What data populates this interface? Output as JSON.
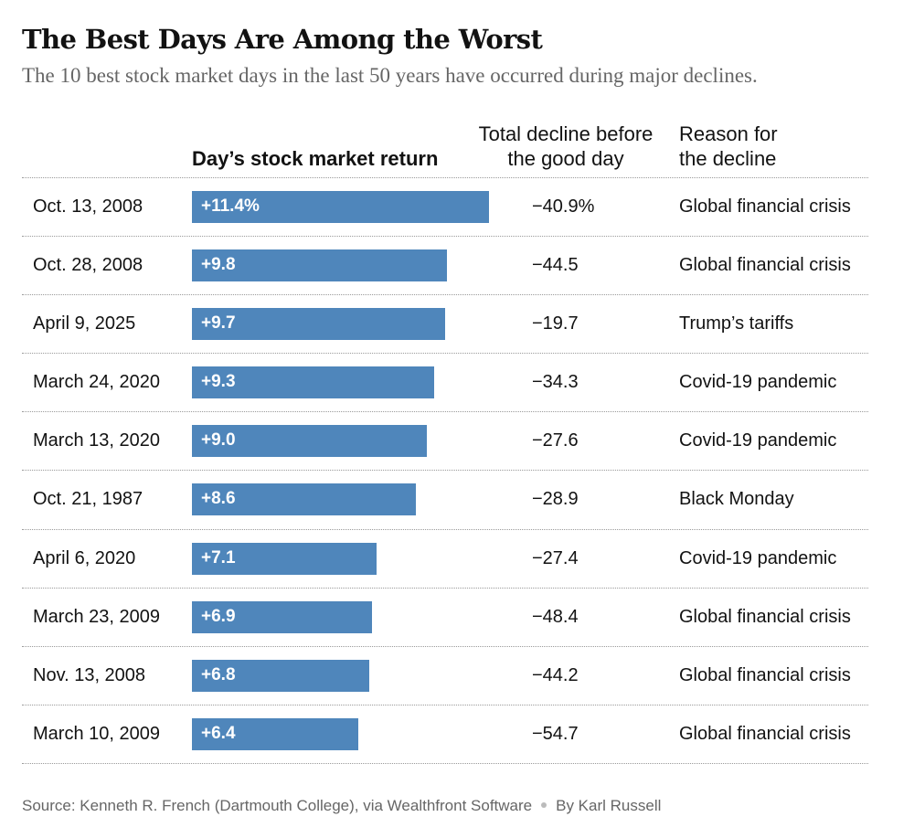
{
  "title": "The Best Days Are Among the Worst",
  "subtitle": "The 10 best stock market days in the last 50 years have occurred during major declines.",
  "columns": {
    "return_header": "Day’s stock market return",
    "decline_header": "Total decline before the good day",
    "reason_header": "Reason for the decline"
  },
  "chart_data": {
    "type": "table",
    "bar_color": "#4f86bb",
    "xlim": [
      0,
      11.4
    ],
    "rows": [
      {
        "date": "Oct. 13, 2008",
        "return": 11.4,
        "return_label": "+11.4%",
        "decline": "−40.9%",
        "reason": "Global financial crisis"
      },
      {
        "date": "Oct. 28, 2008",
        "return": 9.8,
        "return_label": "+9.8",
        "decline": "−44.5",
        "reason": "Global financial crisis"
      },
      {
        "date": "April 9, 2025",
        "return": 9.7,
        "return_label": "+9.7",
        "decline": "−19.7",
        "reason": "Trump’s tariffs"
      },
      {
        "date": "March 24, 2020",
        "return": 9.3,
        "return_label": "+9.3",
        "decline": "−34.3",
        "reason": "Covid-19 pandemic"
      },
      {
        "date": "March 13, 2020",
        "return": 9.0,
        "return_label": "+9.0",
        "decline": "−27.6",
        "reason": "Covid-19 pandemic"
      },
      {
        "date": "Oct. 21, 1987",
        "return": 8.6,
        "return_label": "+8.6",
        "decline": "−28.9",
        "reason": "Black Monday"
      },
      {
        "date": "April 6, 2020",
        "return": 7.1,
        "return_label": "+7.1",
        "decline": "−27.4",
        "reason": "Covid-19 pandemic"
      },
      {
        "date": "March 23, 2009",
        "return": 6.9,
        "return_label": "+6.9",
        "decline": "−48.4",
        "reason": "Global financial crisis"
      },
      {
        "date": "Nov. 13, 2008",
        "return": 6.8,
        "return_label": "+6.8",
        "decline": "−44.2",
        "reason": "Global financial crisis"
      },
      {
        "date": "March 10, 2009",
        "return": 6.4,
        "return_label": "+6.4",
        "decline": "−54.7",
        "reason": "Global financial crisis"
      }
    ]
  },
  "footer": {
    "source": "Source: Kenneth R. French (Dartmouth College), via Wealthfront Software",
    "byline": "By Karl Russell"
  }
}
